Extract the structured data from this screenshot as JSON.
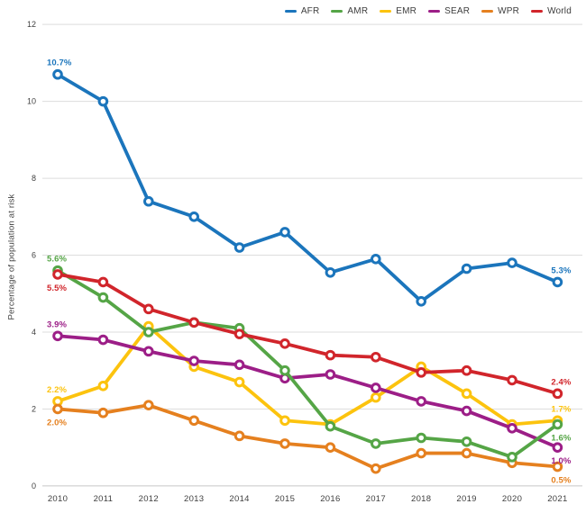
{
  "chart_data": {
    "type": "line",
    "title": "",
    "xlabel": "",
    "ylabel": "Percentage of population at risk",
    "ylim": [
      0,
      12
    ],
    "yticks": [
      0,
      2,
      4,
      6,
      8,
      10,
      12
    ],
    "grid": "horizontal",
    "legend_position": "top-right",
    "x": [
      2010,
      2011,
      2012,
      2013,
      2014,
      2015,
      2016,
      2017,
      2018,
      2019,
      2020,
      2021
    ],
    "series": [
      {
        "name": "AFR",
        "color": "#1b75bc",
        "values": [
          10.7,
          10.0,
          7.4,
          7.0,
          6.2,
          6.6,
          5.55,
          5.9,
          4.8,
          5.65,
          5.8,
          5.3
        ]
      },
      {
        "name": "AMR",
        "color": "#55a546",
        "values": [
          5.6,
          4.9,
          4.0,
          4.25,
          4.1,
          3.0,
          1.55,
          1.1,
          1.25,
          1.15,
          0.75,
          1.6
        ]
      },
      {
        "name": "EMR",
        "color": "#fcc30e",
        "values": [
          2.2,
          2.6,
          4.15,
          3.1,
          2.7,
          1.7,
          1.6,
          2.3,
          3.1,
          2.4,
          1.6,
          1.7
        ]
      },
      {
        "name": "SEAR",
        "color": "#9c1e87",
        "values": [
          3.9,
          3.8,
          3.5,
          3.25,
          3.15,
          2.8,
          2.9,
          2.55,
          2.2,
          1.95,
          1.5,
          1.0
        ]
      },
      {
        "name": "WPR",
        "color": "#e5801f",
        "values": [
          2.0,
          1.9,
          2.1,
          1.7,
          1.3,
          1.1,
          1.0,
          0.45,
          0.85,
          0.85,
          0.6,
          0.5
        ]
      },
      {
        "name": "World",
        "color": "#d1252b",
        "values": [
          5.5,
          5.3,
          4.6,
          4.25,
          3.95,
          3.7,
          3.4,
          3.35,
          2.95,
          3.0,
          2.75,
          2.4
        ]
      }
    ],
    "point_labels": [
      {
        "series": "AFR",
        "year": 2010,
        "text": "10.7%",
        "pos": "above"
      },
      {
        "series": "AMR",
        "year": 2010,
        "text": "5.6%",
        "pos": "above"
      },
      {
        "series": "World",
        "year": 2010,
        "text": "5.5%",
        "pos": "below"
      },
      {
        "series": "SEAR",
        "year": 2010,
        "text": "3.9%",
        "pos": "above"
      },
      {
        "series": "EMR",
        "year": 2010,
        "text": "2.2%",
        "pos": "above"
      },
      {
        "series": "WPR",
        "year": 2010,
        "text": "2.0%",
        "pos": "below"
      },
      {
        "series": "AFR",
        "year": 2021,
        "text": "5.3%",
        "pos": "above"
      },
      {
        "series": "World",
        "year": 2021,
        "text": "2.4%",
        "pos": "above"
      },
      {
        "series": "EMR",
        "year": 2021,
        "text": "1.7%",
        "pos": "above"
      },
      {
        "series": "AMR",
        "year": 2021,
        "text": "1.6%",
        "pos": "below"
      },
      {
        "series": "SEAR",
        "year": 2021,
        "text": "1.0%",
        "pos": "below"
      },
      {
        "series": "WPR",
        "year": 2021,
        "text": "0.5%",
        "pos": "below"
      }
    ]
  }
}
